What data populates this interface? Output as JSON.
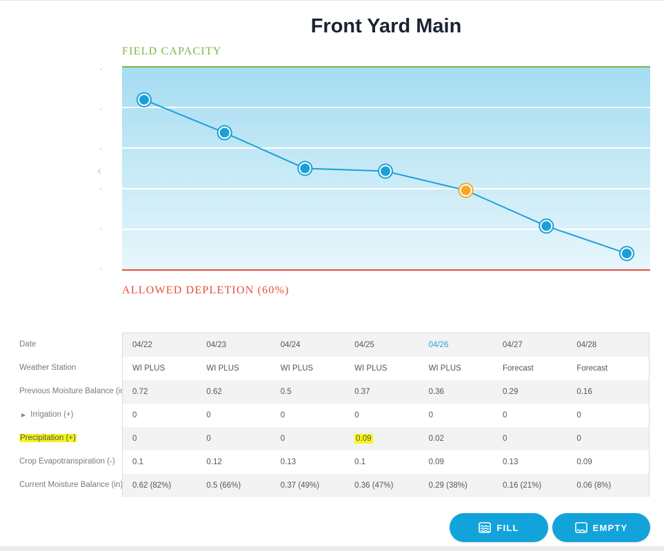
{
  "title": "Front Yard Main",
  "chart": {
    "top_label": "FIELD CAPACITY",
    "bottom_label": "ALLOWED DEPLETION (60%)",
    "colors": {
      "line": "#1aa0d6",
      "point": "#1aa0d6",
      "point_highlight": "#f5a623",
      "field_capacity": "#7ab648",
      "allowed_depletion": "#e74c3c",
      "bg_top": "#a4dcf1",
      "bg_bottom": "#e8f6fc"
    },
    "nav_prev_icon": "chevron-left-icon"
  },
  "chart_data": {
    "type": "line",
    "x": [
      "04/22",
      "04/23",
      "04/24",
      "04/25",
      "04/26",
      "04/27",
      "04/28"
    ],
    "series": [
      {
        "values": [
          0.62,
          0.5,
          0.37,
          0.36,
          0.29,
          0.16,
          0.06
        ]
      }
    ],
    "highlighted_index": 4,
    "ylim": [
      0.0,
      0.74
    ],
    "grid": true
  },
  "table": {
    "row_labels": [
      "Date",
      "Weather Station",
      "Previous Moisture Balance (in)",
      "Irrigation (+)",
      "Precipitation (+)",
      "Crop Evapotranspiration (-)",
      "Current Moisture Balance (in)"
    ],
    "rows": [
      [
        "04/22",
        "04/23",
        "04/24",
        "04/25",
        "04/26",
        "04/27",
        "04/28"
      ],
      [
        "WI PLUS",
        "WI PLUS",
        "WI PLUS",
        "WI PLUS",
        "WI PLUS",
        "Forecast",
        "Forecast"
      ],
      [
        "0.72",
        "0.62",
        "0.5",
        "0.37",
        "0.36",
        "0.29",
        "0.16"
      ],
      [
        "0",
        "0",
        "0",
        "0",
        "0",
        "0",
        "0"
      ],
      [
        "0",
        "0",
        "0",
        "0.09",
        "0.02",
        "0",
        "0"
      ],
      [
        "0.1",
        "0.12",
        "0.13",
        "0.1",
        "0.09",
        "0.13",
        "0.09"
      ],
      [
        "0.62 (82%)",
        "0.5 (66%)",
        "0.37 (49%)",
        "0.36 (47%)",
        "0.29 (38%)",
        "0.16 (21%)",
        "0.06 (8%)"
      ]
    ],
    "today_index": 4,
    "highlight_cell": {
      "row": 4,
      "col": 3
    }
  },
  "buttons": {
    "fill_label": "FILL",
    "empty_label": "EMPTY",
    "fill_icon": "water-icon",
    "empty_icon": "empty-tray-icon"
  }
}
